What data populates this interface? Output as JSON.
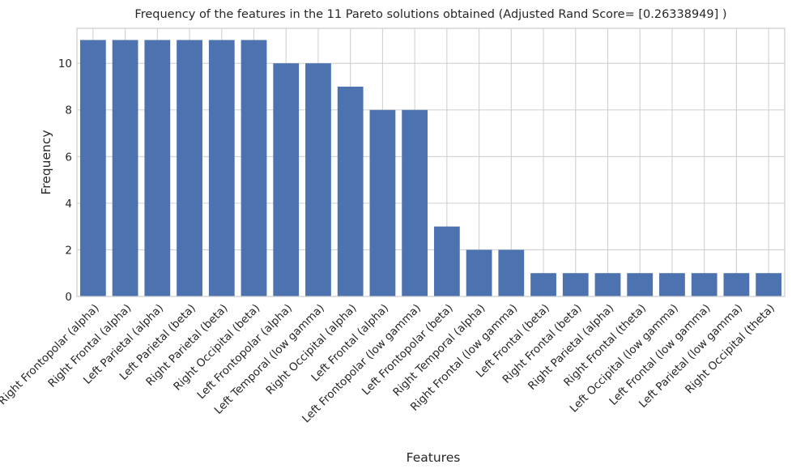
{
  "chart_data": {
    "type": "bar",
    "title": "Frequency of the features in the 11 Pareto solutions obtained (Adjusted Rand Score= [0.26338949] )",
    "xlabel": "Features",
    "ylabel": "Frequency",
    "ylim": [
      0,
      11.5
    ],
    "yticks": [
      0,
      2,
      4,
      6,
      8,
      10
    ],
    "grid": true,
    "bar_color": "#4c72b0",
    "categories": [
      "Right Frontopolar (alpha)",
      "Right Frontal (alpha)",
      "Left Parietal (alpha)",
      "Left Parietal (beta)",
      "Right Parietal (beta)",
      "Right Occipital (beta)",
      "Left Frontopolar (alpha)",
      "Left Temporal (low gamma)",
      "Right Occipital (alpha)",
      "Left Frontal (alpha)",
      "Left Frontopolar (low gamma)",
      "Left Frontopolar (beta)",
      "Right Temporal (alpha)",
      "Right Frontal (low gamma)",
      "Left Frontal (beta)",
      "Right Frontal (beta)",
      "Right Parietal (alpha)",
      "Right Frontal (theta)",
      "Left Occipital (low gamma)",
      "Left Frontal (low gamma)",
      "Left Parietal (low gamma)",
      "Right Occipital (theta)"
    ],
    "values": [
      11,
      11,
      11,
      11,
      11,
      11,
      10,
      10,
      9,
      8,
      8,
      3,
      2,
      2,
      1,
      1,
      1,
      1,
      1,
      1,
      1,
      1
    ]
  }
}
